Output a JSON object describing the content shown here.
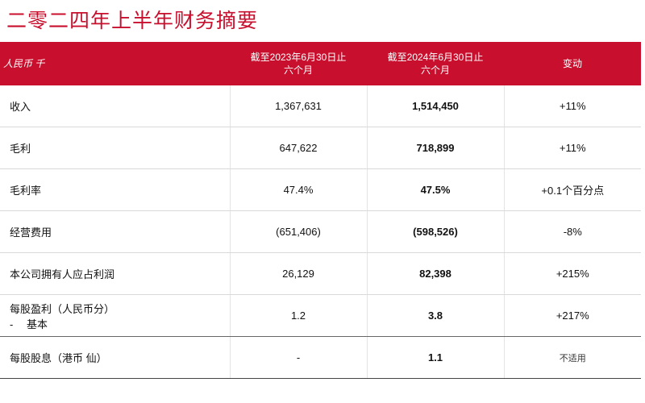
{
  "title": "二零二四年上半年财务摘要",
  "table": {
    "header": [
      "人民币 千",
      [
        "截至2023年6月30日止",
        "六个月"
      ],
      [
        "截至2024年6月30日止",
        "六个月"
      ],
      "变动"
    ],
    "rows": [
      [
        "收入",
        "1,367,631",
        "1,514,450",
        "+11%"
      ],
      [
        "毛利",
        "647,622",
        "718,899",
        "+11%"
      ],
      [
        "毛利率",
        "47.4%",
        "47.5%",
        "+0.1个百分点"
      ],
      [
        "经营费用",
        "(651,406)",
        "(598,526)",
        "-8%"
      ],
      [
        "本公司拥有人应占利润",
        "26,129",
        "82,398",
        "+215%"
      ],
      [
        [
          "每股盈利（人民币分）",
          "-　 基本"
        ],
        "1.2",
        "3.8",
        "+217%"
      ],
      [
        "每股股息（港币 仙）",
        "-",
        "1.1",
        "不适用"
      ]
    ]
  }
}
